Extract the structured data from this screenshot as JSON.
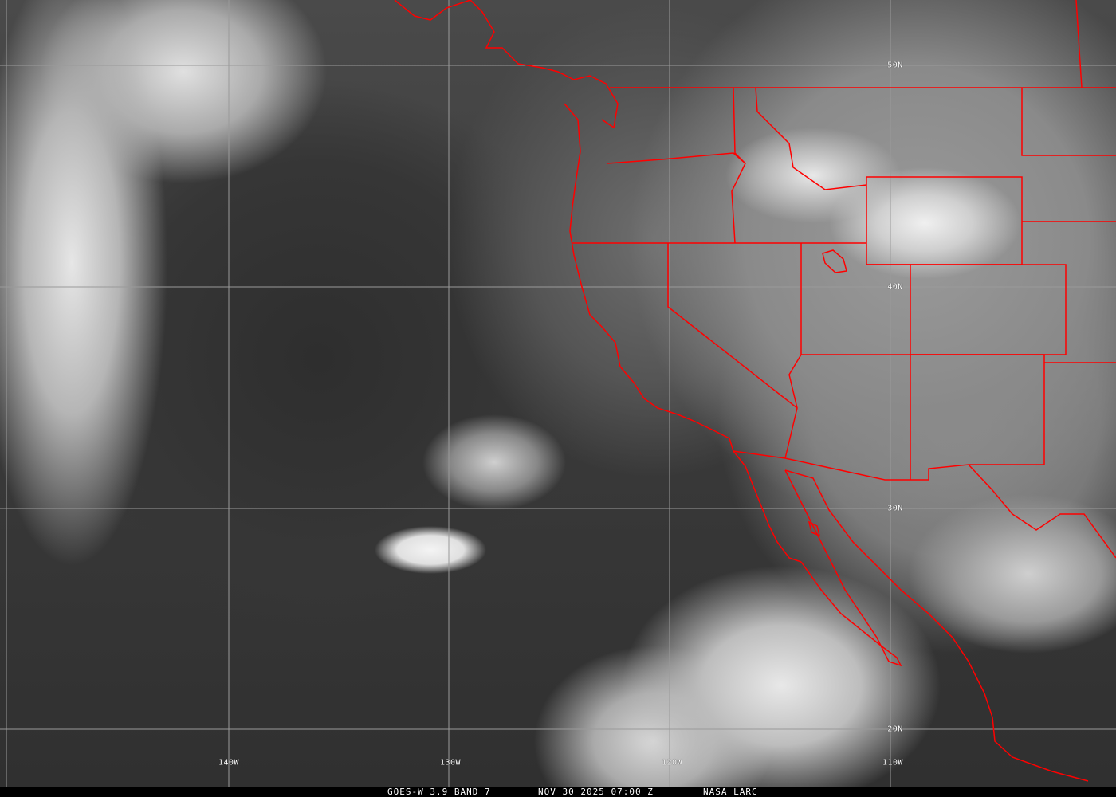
{
  "caption": {
    "satellite_band": "GOES-W 3.9 BAND 7",
    "timestamp": "NOV 30 2025 07:00 Z",
    "source": "NASA LARC"
  },
  "grid_labels": {
    "lat": [
      "50N",
      "40N",
      "30N",
      "20N"
    ],
    "lon": [
      "140W",
      "130W",
      "120W",
      "110W"
    ]
  },
  "colors": {
    "boundaries": "#ff0000",
    "grid": "#9a9a9a",
    "labels": "#ffffff"
  }
}
